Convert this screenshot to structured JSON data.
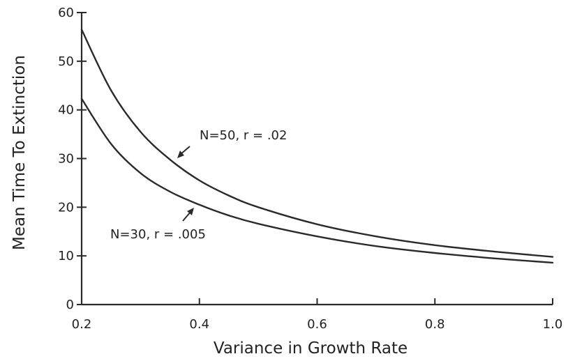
{
  "chart_data": {
    "type": "line",
    "title": "",
    "xlabel": "Variance in Growth Rate",
    "ylabel": "Mean Time To Extinction",
    "xlim": [
      0.2,
      1.0
    ],
    "ylim": [
      0,
      60
    ],
    "x_ticks": [
      0.2,
      0.4,
      0.6,
      0.8,
      1.0
    ],
    "x_tick_labels": [
      "0.2",
      "0.4",
      "0.6",
      "0.8",
      "1.0"
    ],
    "y_ticks": [
      0,
      10,
      20,
      30,
      40,
      50,
      60
    ],
    "y_tick_labels": [
      "0",
      "10",
      "20",
      "30",
      "40",
      "50",
      "60"
    ],
    "grid": false,
    "series": [
      {
        "annotation": "N=50, r = .02",
        "x": [
          0.2,
          0.25,
          0.3,
          0.35,
          0.4,
          0.45,
          0.5,
          0.6,
          0.7,
          0.8,
          0.9,
          1.0
        ],
        "y": [
          56.5,
          44.0,
          35.5,
          29.8,
          25.5,
          22.4,
          20.0,
          16.5,
          14.0,
          12.2,
          10.9,
          9.8
        ]
      },
      {
        "annotation": "N=30, r = .005",
        "x": [
          0.2,
          0.25,
          0.3,
          0.35,
          0.4,
          0.45,
          0.5,
          0.6,
          0.7,
          0.8,
          0.9,
          1.0
        ],
        "y": [
          42.3,
          33.0,
          27.0,
          23.2,
          20.5,
          18.3,
          16.6,
          14.0,
          12.0,
          10.6,
          9.5,
          8.6
        ]
      }
    ]
  }
}
